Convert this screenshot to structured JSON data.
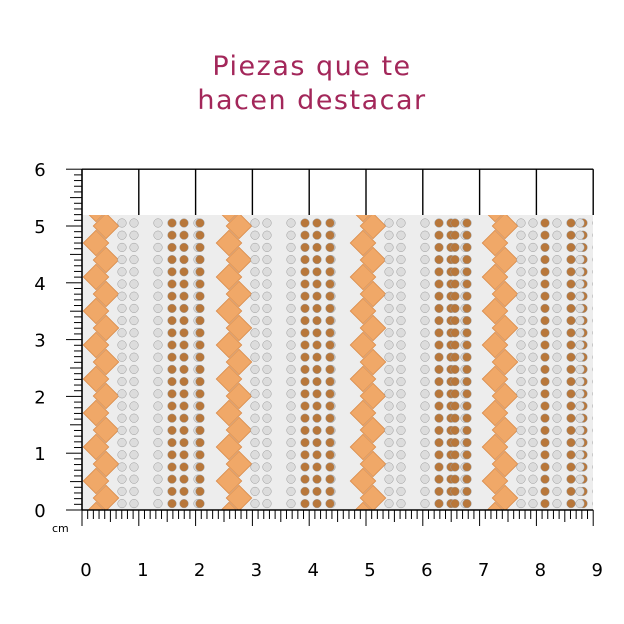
{
  "title": {
    "line1": "Piezas que te",
    "line2": "hacen destacar"
  },
  "unit_label": "cm",
  "y_ticks": [
    "0",
    "1",
    "2",
    "3",
    "4",
    "5",
    "6"
  ],
  "x_ticks": [
    "0",
    "1",
    "2",
    "3",
    "4",
    "5",
    "6",
    "7",
    "8",
    "9"
  ],
  "colors": {
    "title": "#a3275a",
    "ruler": "#000000",
    "crystal_orange": "#f0a868",
    "crystal_topaz": "#b8773a",
    "crystal_clear": "#dcdcdc",
    "mesh_background": "#ededed"
  },
  "product": {
    "description_visible": false,
    "width_cm": 9,
    "height_cm": 5.2
  }
}
